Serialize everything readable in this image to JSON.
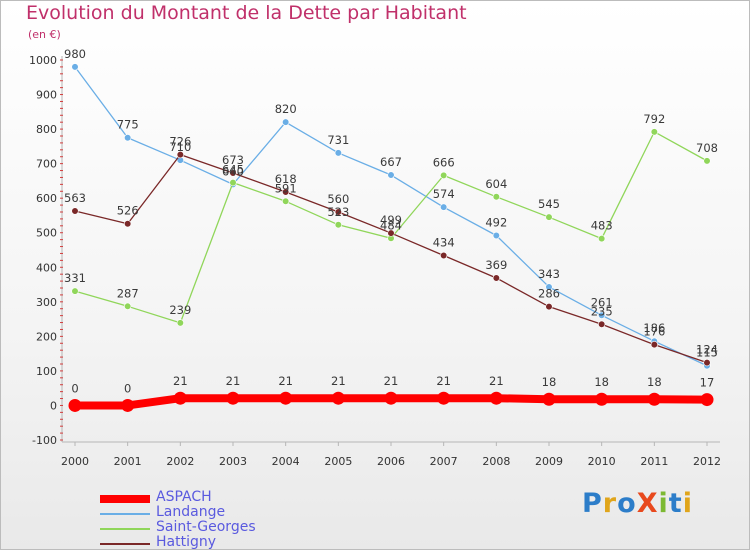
{
  "title": "Evolution du Montant de la Dette par Habitant",
  "unit_label": "(en €)",
  "logo_text": "ProXiti",
  "chart_data": {
    "type": "line",
    "title": "Evolution du Montant de la Dette par Habitant",
    "ylabel": "(en €)",
    "xlabel": "",
    "x": [
      "2000",
      "2001",
      "2002",
      "2003",
      "2004",
      "2005",
      "2006",
      "2007",
      "2008",
      "2009",
      "2010",
      "2011",
      "2012"
    ],
    "ylim": [
      -100,
      1000
    ],
    "yticks": [
      -100,
      0,
      100,
      200,
      300,
      400,
      500,
      600,
      700,
      800,
      900,
      1000
    ],
    "grid": false,
    "legend_position": "bottom-left",
    "series": [
      {
        "name": "ASPACH",
        "color": "#ff0000",
        "values": [
          0,
          0,
          21,
          21,
          21,
          21,
          21,
          21,
          21,
          18,
          18,
          18,
          17
        ]
      },
      {
        "name": "Landange",
        "color": "#6aaee6",
        "values": [
          980,
          775,
          710,
          640,
          820,
          731,
          667,
          574,
          492,
          343,
          261,
          186,
          115
        ]
      },
      {
        "name": "Saint-Georges",
        "color": "#90d65a",
        "values": [
          331,
          287,
          239,
          645,
          591,
          523,
          484,
          666,
          604,
          545,
          483,
          792,
          708
        ]
      },
      {
        "name": "Hattigny",
        "color": "#7a2828",
        "values": [
          563,
          526,
          726,
          673,
          618,
          560,
          499,
          434,
          369,
          286,
          235,
          176,
          124
        ]
      }
    ]
  }
}
